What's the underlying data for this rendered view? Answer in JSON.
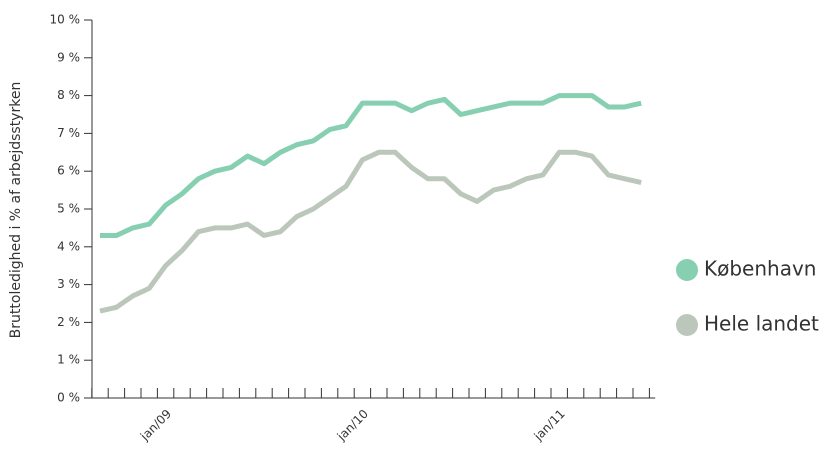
{
  "chart_data": {
    "type": "line",
    "ylabel": "Bruttoledighed i % af arbejdsstyrken",
    "categories": [
      null,
      null,
      null,
      null,
      "jan/09",
      null,
      null,
      null,
      null,
      null,
      null,
      null,
      null,
      null,
      null,
      null,
      "jan/10",
      null,
      null,
      null,
      null,
      null,
      null,
      null,
      null,
      null,
      null,
      null,
      "jan/11",
      null,
      null,
      null,
      null,
      null
    ],
    "series": [
      {
        "name": "København",
        "color": "#86cfb0",
        "values": [
          4.3,
          4.3,
          4.5,
          4.6,
          5.1,
          5.4,
          5.8,
          6.0,
          6.1,
          6.4,
          6.2,
          6.5,
          6.7,
          6.8,
          7.1,
          7.2,
          7.8,
          7.8,
          7.8,
          7.6,
          7.8,
          7.9,
          7.5,
          7.6,
          7.7,
          7.8,
          7.8,
          7.8,
          8.0,
          8.0,
          8.0,
          7.7,
          7.7,
          7.8
        ]
      },
      {
        "name": "Hele landet",
        "color": "#bcc7bc",
        "values": [
          2.3,
          2.4,
          2.7,
          2.9,
          3.5,
          3.9,
          4.4,
          4.5,
          4.5,
          4.6,
          4.3,
          4.4,
          4.8,
          5.0,
          5.3,
          5.6,
          6.3,
          6.5,
          6.5,
          6.1,
          5.8,
          5.8,
          5.4,
          5.2,
          5.5,
          5.6,
          5.8,
          5.9,
          6.5,
          6.5,
          6.4,
          5.9,
          5.8,
          5.7
        ]
      }
    ],
    "ylim": [
      0,
      10
    ],
    "yticks": [
      {
        "value": 0,
        "label": "0 %"
      },
      {
        "value": 1,
        "label": "1 %"
      },
      {
        "value": 2,
        "label": "2 %"
      },
      {
        "value": 3,
        "label": "3 %"
      },
      {
        "value": 4,
        "label": "4 %"
      },
      {
        "value": 5,
        "label": "5 %"
      },
      {
        "value": 6,
        "label": "6 %"
      },
      {
        "value": 7,
        "label": "7 %"
      },
      {
        "value": 8,
        "label": "8 %"
      },
      {
        "value": 9,
        "label": "9 %"
      },
      {
        "value": 10,
        "label": "10 %"
      }
    ],
    "legend": "right"
  }
}
